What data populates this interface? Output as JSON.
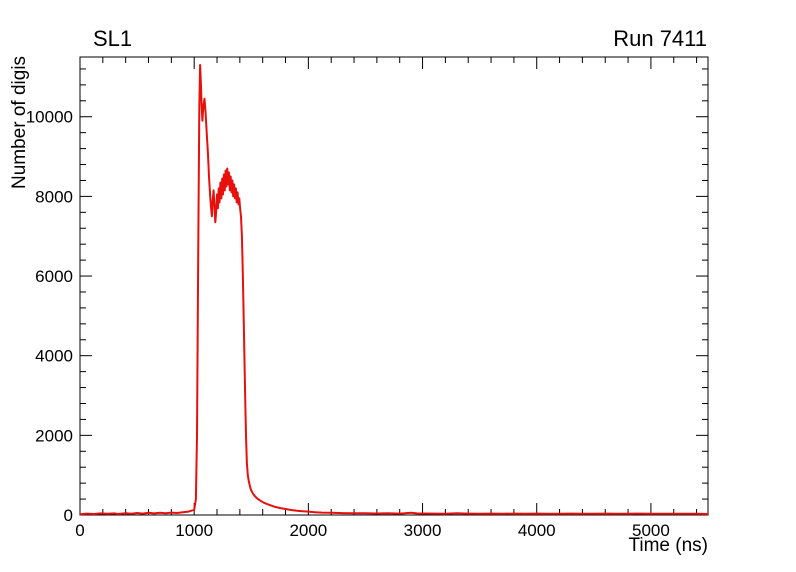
{
  "page": {
    "background": "#ffffff"
  },
  "chart_data": {
    "type": "line",
    "title_left": "SL1",
    "title_right": "Run 7411",
    "xlabel": "Time (ns)",
    "ylabel": "Number of digis",
    "xlim": [
      0,
      5500
    ],
    "ylim": [
      0,
      11500
    ],
    "x_major_ticks": [
      0,
      1000,
      2000,
      3000,
      4000,
      5000
    ],
    "x_minor_step": 200,
    "y_major_ticks": [
      0,
      2000,
      4000,
      6000,
      8000,
      10000
    ],
    "y_minor_step": 400,
    "line_color": "#e8100c",
    "frame_color": "#000000",
    "points": [
      [
        0,
        20
      ],
      [
        60,
        35
      ],
      [
        120,
        25
      ],
      [
        180,
        40
      ],
      [
        240,
        30
      ],
      [
        300,
        40
      ],
      [
        330,
        25
      ],
      [
        400,
        45
      ],
      [
        450,
        30
      ],
      [
        500,
        50
      ],
      [
        550,
        35
      ],
      [
        600,
        55
      ],
      [
        650,
        40
      ],
      [
        700,
        55
      ],
      [
        750,
        45
      ],
      [
        800,
        60
      ],
      [
        850,
        50
      ],
      [
        900,
        70
      ],
      [
        950,
        85
      ],
      [
        1000,
        130
      ],
      [
        1015,
        400
      ],
      [
        1025,
        2000
      ],
      [
        1035,
        6500
      ],
      [
        1045,
        10200
      ],
      [
        1052,
        11300
      ],
      [
        1058,
        10900
      ],
      [
        1065,
        10300
      ],
      [
        1072,
        9900
      ],
      [
        1080,
        10250
      ],
      [
        1090,
        10450
      ],
      [
        1100,
        10100
      ],
      [
        1110,
        9600
      ],
      [
        1120,
        9100
      ],
      [
        1130,
        8500
      ],
      [
        1140,
        8000
      ],
      [
        1148,
        7700
      ],
      [
        1155,
        7500
      ],
      [
        1162,
        7900
      ],
      [
        1170,
        8150
      ],
      [
        1178,
        7750
      ],
      [
        1185,
        7350
      ],
      [
        1192,
        7600
      ],
      [
        1200,
        8050
      ],
      [
        1208,
        7700
      ],
      [
        1215,
        8200
      ],
      [
        1222,
        7850
      ],
      [
        1230,
        8350
      ],
      [
        1238,
        7950
      ],
      [
        1245,
        8450
      ],
      [
        1252,
        8050
      ],
      [
        1260,
        8550
      ],
      [
        1268,
        8150
      ],
      [
        1275,
        8650
      ],
      [
        1282,
        8250
      ],
      [
        1290,
        8700
      ],
      [
        1298,
        8300
      ],
      [
        1305,
        8600
      ],
      [
        1312,
        8150
      ],
      [
        1320,
        8500
      ],
      [
        1328,
        8100
      ],
      [
        1335,
        8400
      ],
      [
        1342,
        8000
      ],
      [
        1350,
        8300
      ],
      [
        1358,
        7950
      ],
      [
        1365,
        8200
      ],
      [
        1372,
        7850
      ],
      [
        1380,
        8100
      ],
      [
        1388,
        7800
      ],
      [
        1395,
        7950
      ],
      [
        1402,
        7700
      ],
      [
        1410,
        7500
      ],
      [
        1418,
        7000
      ],
      [
        1425,
        6200
      ],
      [
        1432,
        5200
      ],
      [
        1440,
        4000
      ],
      [
        1448,
        2800
      ],
      [
        1455,
        1900
      ],
      [
        1462,
        1300
      ],
      [
        1470,
        1000
      ],
      [
        1480,
        820
      ],
      [
        1495,
        650
      ],
      [
        1510,
        560
      ],
      [
        1530,
        480
      ],
      [
        1550,
        420
      ],
      [
        1580,
        360
      ],
      [
        1610,
        310
      ],
      [
        1650,
        260
      ],
      [
        1700,
        210
      ],
      [
        1750,
        175
      ],
      [
        1800,
        150
      ],
      [
        1850,
        125
      ],
      [
        1900,
        105
      ],
      [
        1950,
        95
      ],
      [
        2000,
        85
      ],
      [
        2060,
        70
      ],
      [
        2120,
        60
      ],
      [
        2200,
        55
      ],
      [
        2300,
        48
      ],
      [
        2400,
        42
      ],
      [
        2500,
        45
      ],
      [
        2600,
        38
      ],
      [
        2700,
        42
      ],
      [
        2800,
        36
      ],
      [
        2900,
        55
      ],
      [
        2950,
        40
      ],
      [
        3000,
        38
      ],
      [
        3100,
        34
      ],
      [
        3200,
        30
      ],
      [
        3300,
        42
      ],
      [
        3400,
        34
      ],
      [
        3500,
        30
      ],
      [
        3600,
        36
      ],
      [
        3700,
        30
      ],
      [
        3800,
        34
      ],
      [
        3900,
        30
      ],
      [
        4000,
        36
      ],
      [
        4100,
        30
      ],
      [
        4200,
        32
      ],
      [
        4300,
        36
      ],
      [
        4400,
        30
      ],
      [
        4500,
        32
      ],
      [
        4600,
        36
      ],
      [
        4700,
        30
      ],
      [
        4800,
        32
      ],
      [
        4900,
        36
      ],
      [
        5000,
        30
      ],
      [
        5100,
        32
      ],
      [
        5200,
        30
      ],
      [
        5300,
        32
      ],
      [
        5400,
        30
      ],
      [
        5500,
        26
      ]
    ]
  }
}
